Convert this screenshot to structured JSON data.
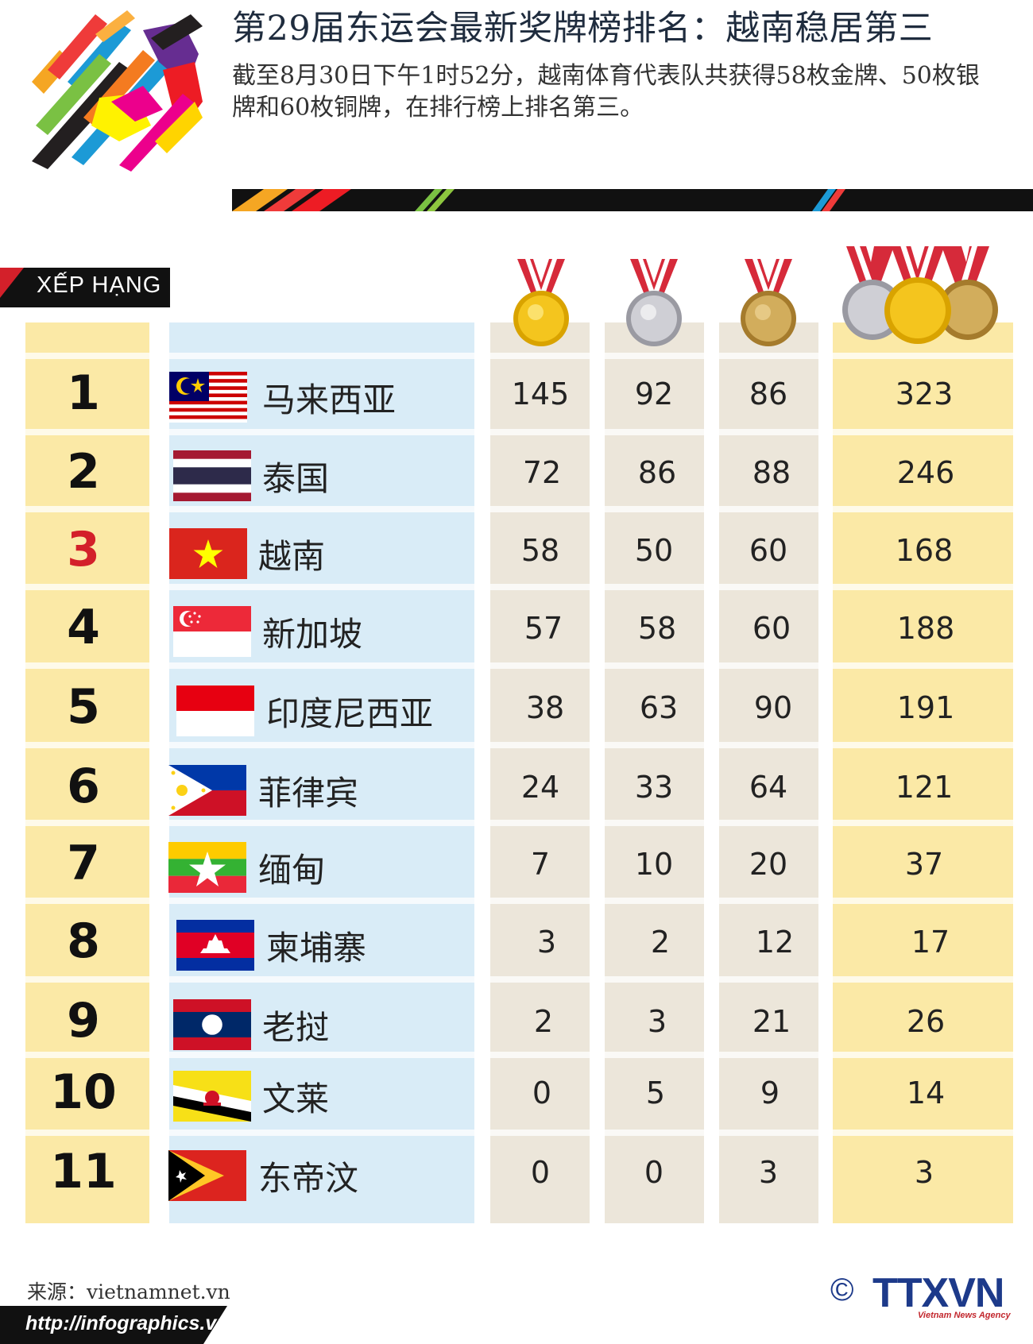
{
  "header": {
    "title": "第29届东运会最新奖牌榜排名：越南稳居第三",
    "subtitle": "截至8月30日下午1时52分，越南体育代表队共获得58枚金牌、50枚银牌和60枚铜牌，在排行榜上排名第三。"
  },
  "table": {
    "rank_label": "XẾP HẠNG",
    "highlight_rank": "3",
    "rows": [
      {
        "rank": "1",
        "country": "马来西亚",
        "flag": "malaysia",
        "gold": "145",
        "silver": "92",
        "bronze": "86",
        "total": "323"
      },
      {
        "rank": "2",
        "country": "泰国",
        "flag": "thailand",
        "gold": "72",
        "silver": "86",
        "bronze": "88",
        "total": "246"
      },
      {
        "rank": "3",
        "country": "越南",
        "flag": "vietnam",
        "gold": "58",
        "silver": "50",
        "bronze": "60",
        "total": "168"
      },
      {
        "rank": "4",
        "country": "新加坡",
        "flag": "singapore",
        "gold": "57",
        "silver": "58",
        "bronze": "60",
        "total": "188"
      },
      {
        "rank": "5",
        "country": "印度尼西亚",
        "flag": "indonesia",
        "gold": "38",
        "silver": "63",
        "bronze": "90",
        "total": "191"
      },
      {
        "rank": "6",
        "country": "菲律宾",
        "flag": "philippines",
        "gold": "24",
        "silver": "33",
        "bronze": "64",
        "total": "121"
      },
      {
        "rank": "7",
        "country": "缅甸",
        "flag": "myanmar",
        "gold": "7",
        "silver": "10",
        "bronze": "20",
        "total": "37"
      },
      {
        "rank": "8",
        "country": "柬埔寨",
        "flag": "cambodia",
        "gold": "3",
        "silver": "2",
        "bronze": "12",
        "total": "17"
      },
      {
        "rank": "9",
        "country": "老挝",
        "flag": "laos",
        "gold": "2",
        "silver": "3",
        "bronze": "21",
        "total": "26"
      },
      {
        "rank": "10",
        "country": "文莱",
        "flag": "brunei",
        "gold": "0",
        "silver": "5",
        "bronze": "9",
        "total": "14"
      },
      {
        "rank": "11",
        "country": "东帝汶",
        "flag": "timor-leste",
        "gold": "0",
        "silver": "0",
        "bronze": "3",
        "total": "3"
      }
    ]
  },
  "footer": {
    "source": "来源：vietnamnet.vn",
    "url": "http://infographics.vn",
    "copyright": "©",
    "agency": "TTXVN",
    "agency_sub": "Vietnam News Agency"
  },
  "colors": {
    "rank_column": "#fbe9a6",
    "country_column": "#d9ecf7",
    "medal_column": "#ece6da",
    "total_column": "#fbe9a6",
    "highlight_rank": "#d3202a",
    "gold_medal": "#f4c51e",
    "silver_medal": "#bfbfc4",
    "bronze_medal": "#c9a14a",
    "ribbon_red": "#d62a3a"
  }
}
